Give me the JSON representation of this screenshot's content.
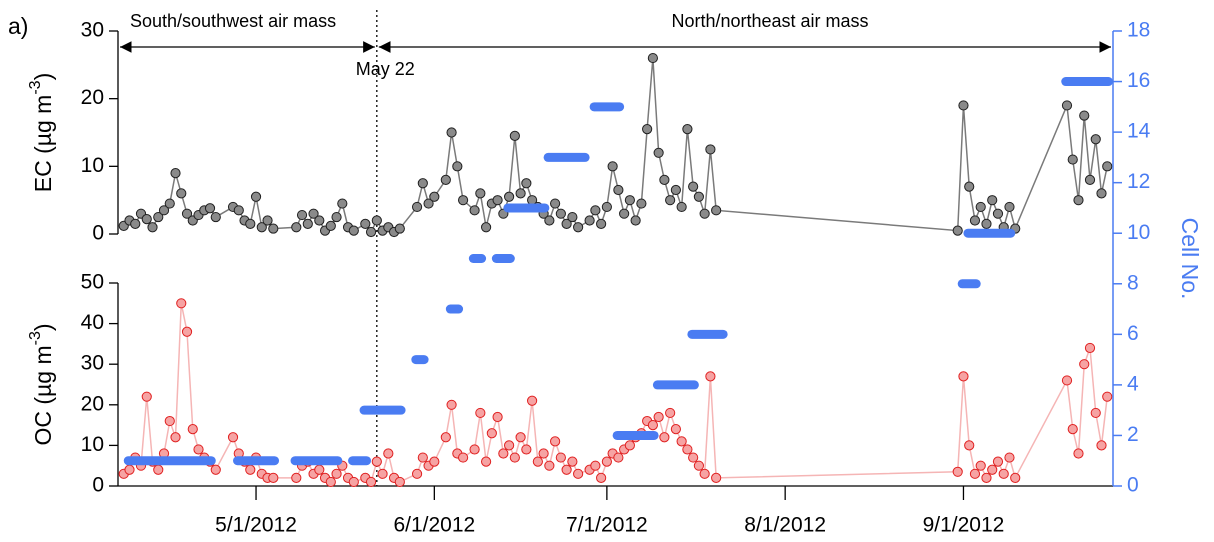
{
  "chart_data": {
    "type": "line",
    "panel_label": "a)",
    "annotations": {
      "left": "South/southwest air mass",
      "right": "North/northeast air mass"
    },
    "divider": {
      "x": "2012-05-22",
      "label": "May 22"
    },
    "xlim": [
      "2012-04-07",
      "2012-09-27"
    ],
    "xticks": [
      {
        "value": "2012-05-01",
        "label": "5/1/2012"
      },
      {
        "value": "2012-06-01",
        "label": "6/1/2012"
      },
      {
        "value": "2012-07-01",
        "label": "7/1/2012"
      },
      {
        "value": "2012-08-01",
        "label": "8/1/2012"
      },
      {
        "value": "2012-09-01",
        "label": "9/1/2012"
      }
    ],
    "x": [
      "2012-04-08",
      "2012-04-09",
      "2012-04-10",
      "2012-04-11",
      "2012-04-12",
      "2012-04-13",
      "2012-04-14",
      "2012-04-15",
      "2012-04-16",
      "2012-04-17",
      "2012-04-18",
      "2012-04-19",
      "2012-04-20",
      "2012-04-21",
      "2012-04-22",
      "2012-04-23",
      "2012-04-24",
      "2012-04-27",
      "2012-04-28",
      "2012-04-29",
      "2012-04-30",
      "2012-05-01",
      "2012-05-02",
      "2012-05-03",
      "2012-05-04",
      "2012-05-08",
      "2012-05-09",
      "2012-05-10",
      "2012-05-11",
      "2012-05-12",
      "2012-05-13",
      "2012-05-14",
      "2012-05-15",
      "2012-05-16",
      "2012-05-17",
      "2012-05-18",
      "2012-05-20",
      "2012-05-21",
      "2012-05-22",
      "2012-05-23",
      "2012-05-24",
      "2012-05-25",
      "2012-05-26",
      "2012-05-29",
      "2012-05-30",
      "2012-05-31",
      "2012-06-01",
      "2012-06-03",
      "2012-06-04",
      "2012-06-05",
      "2012-06-06",
      "2012-06-08",
      "2012-06-09",
      "2012-06-10",
      "2012-06-11",
      "2012-06-12",
      "2012-06-13",
      "2012-06-14",
      "2012-06-15",
      "2012-06-16",
      "2012-06-17",
      "2012-06-18",
      "2012-06-19",
      "2012-06-20",
      "2012-06-21",
      "2012-06-22",
      "2012-06-23",
      "2012-06-24",
      "2012-06-25",
      "2012-06-26",
      "2012-06-28",
      "2012-06-29",
      "2012-06-30",
      "2012-07-01",
      "2012-07-02",
      "2012-07-03",
      "2012-07-04",
      "2012-07-05",
      "2012-07-06",
      "2012-07-07",
      "2012-07-08",
      "2012-07-09",
      "2012-07-10",
      "2012-07-11",
      "2012-07-12",
      "2012-07-13",
      "2012-07-14",
      "2012-07-15",
      "2012-07-16",
      "2012-07-17",
      "2012-07-18",
      "2012-07-19",
      "2012-07-20",
      "2012-08-31",
      "2012-09-01",
      "2012-09-02",
      "2012-09-03",
      "2012-09-04",
      "2012-09-05",
      "2012-09-06",
      "2012-09-07",
      "2012-09-08",
      "2012-09-09",
      "2012-09-10",
      "2012-09-19",
      "2012-09-20",
      "2012-09-21",
      "2012-09-22",
      "2012-09-23",
      "2012-09-24",
      "2012-09-25",
      "2012-09-26"
    ],
    "panels": [
      {
        "ylabel": {
          "text": "EC (µg m",
          "sup": "-3",
          "end": ")"
        },
        "ylim": [
          0,
          30
        ],
        "yticks": [
          0,
          10,
          20,
          30
        ],
        "color": "#8a8a8a",
        "edge": "#202020",
        "line_color": "#7a7a7a",
        "values": [
          1.2,
          2.0,
          1.5,
          3.0,
          2.2,
          1.0,
          2.5,
          3.5,
          4.5,
          9.0,
          6.0,
          3.0,
          2.0,
          2.8,
          3.5,
          3.8,
          2.5,
          4.0,
          3.5,
          2.0,
          1.5,
          5.5,
          1.0,
          2.0,
          0.8,
          1.0,
          2.8,
          1.5,
          3.0,
          2.0,
          0.5,
          1.2,
          2.5,
          4.5,
          1.0,
          0.5,
          1.5,
          0.3,
          2.0,
          0.5,
          1.0,
          0.3,
          0.8,
          4.0,
          7.5,
          4.5,
          5.5,
          8.0,
          15.0,
          10.0,
          5.0,
          3.5,
          6.0,
          1.0,
          4.5,
          5.0,
          3.0,
          5.5,
          14.5,
          6.0,
          7.5,
          5.0,
          4.0,
          3.0,
          2.0,
          4.5,
          3.0,
          1.5,
          2.5,
          1.0,
          2.0,
          3.5,
          1.5,
          4.0,
          10.0,
          6.5,
          3.0,
          5.0,
          2.0,
          4.5,
          15.5,
          26.0,
          12.0,
          8.0,
          5.0,
          6.5,
          4.0,
          15.5,
          7.0,
          5.5,
          3.0,
          12.5,
          3.5,
          0.5,
          19.0,
          7.0,
          2.0,
          4.0,
          1.5,
          5.0,
          3.0,
          1.0,
          4.0,
          0.8,
          19.0,
          11.0,
          5.0,
          17.5,
          8.0,
          14.0,
          6.0,
          10.0
        ]
      },
      {
        "ylabel": {
          "text": "OC (µg m",
          "sup": "-3",
          "end": ")"
        },
        "ylim": [
          0,
          50
        ],
        "yticks": [
          0,
          10,
          20,
          30,
          40,
          50
        ],
        "color": "#f6a3a3",
        "edge": "#e02020",
        "line_color": "#f5b5b5",
        "values": [
          3,
          4,
          7,
          5,
          22,
          6,
          4,
          8,
          16,
          12,
          45,
          38,
          14,
          9,
          7,
          6,
          4,
          12,
          8,
          6,
          4,
          7,
          3,
          2,
          2,
          2,
          5,
          6,
          3,
          4,
          2,
          1,
          3,
          5,
          2,
          1,
          2,
          1,
          6,
          3,
          8,
          2,
          1,
          3,
          7,
          5,
          6,
          12,
          20,
          8,
          7,
          9,
          18,
          6,
          13,
          17,
          8,
          10,
          7,
          12,
          9,
          21,
          6,
          8,
          5,
          11,
          7,
          4,
          6,
          3,
          4,
          5,
          2,
          6,
          8,
          7,
          9,
          10,
          12,
          13,
          16,
          15,
          17,
          12,
          18,
          14,
          11,
          9,
          7,
          5,
          3,
          27,
          2,
          3.5,
          27,
          10,
          3,
          5,
          2,
          4,
          6,
          3,
          7,
          2,
          26,
          14,
          8,
          30,
          34,
          18,
          10,
          22
        ]
      }
    ],
    "cells": {
      "ylabel": "Cell No.",
      "axis": "y2",
      "color": "#4a7cf2",
      "y2lim": [
        0,
        18
      ],
      "y2ticks": [
        0,
        2,
        4,
        6,
        8,
        10,
        12,
        14,
        16,
        18
      ],
      "start": [
        "2012-04-08",
        "2012-04-27",
        "2012-05-07",
        "2012-05-17",
        "2012-05-19",
        "2012-05-28",
        "2012-06-03",
        "2012-06-07",
        "2012-06-11",
        "2012-06-13",
        "2012-06-20",
        "2012-06-28",
        "2012-07-02",
        "2012-07-09",
        "2012-07-15",
        "2012-08-31",
        "2012-09-01",
        "2012-09-18"
      ],
      "end": [
        "2012-04-24",
        "2012-05-05",
        "2012-05-16",
        "2012-05-21",
        "2012-05-27",
        "2012-05-31",
        "2012-06-06",
        "2012-06-10",
        "2012-06-15",
        "2012-06-21",
        "2012-06-28",
        "2012-07-04",
        "2012-07-10",
        "2012-07-17",
        "2012-07-22",
        "2012-09-04",
        "2012-09-10",
        "2012-09-27"
      ],
      "values": [
        1,
        1,
        1,
        1,
        3,
        5,
        7,
        9,
        9,
        11,
        13,
        15,
        2,
        4,
        6,
        8,
        10,
        16
      ]
    }
  }
}
